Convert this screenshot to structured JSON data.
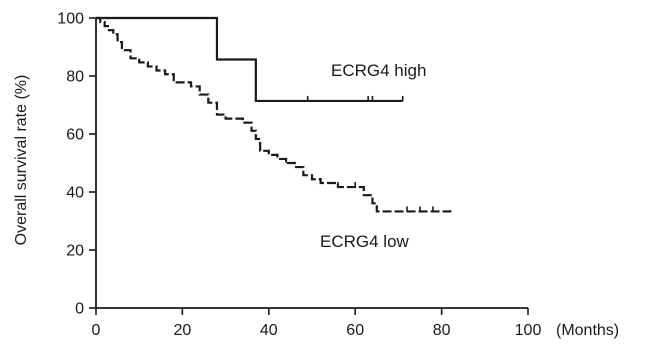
{
  "chart_data": {
    "type": "line",
    "step": true,
    "xlabel": "(Months)",
    "ylabel": "Overall survival rate (%)",
    "xlim": [
      0,
      100
    ],
    "ylim": [
      0,
      100
    ],
    "xticks": [
      0,
      20,
      40,
      60,
      80,
      100
    ],
    "yticks": [
      0,
      20,
      40,
      60,
      80,
      100
    ],
    "grid": false,
    "series": [
      {
        "name": "ECRG4 high",
        "style": "solid",
        "x": [
          0,
          28,
          37,
          71
        ],
        "y": [
          100,
          85.7,
          71.4,
          71.4
        ],
        "censored_x": [
          49,
          63,
          64,
          71
        ],
        "censored_y": [
          71.4,
          71.4,
          71.4,
          71.4
        ]
      },
      {
        "name": "ECRG4 low",
        "style": "dashed",
        "x": [
          0,
          1,
          2,
          3,
          4,
          5,
          6,
          8,
          10,
          12,
          14,
          16,
          18,
          20,
          22,
          24,
          26,
          28,
          30,
          32,
          34,
          36,
          37,
          38,
          40,
          42,
          44,
          46,
          48,
          50,
          52,
          54,
          56,
          60,
          62,
          64,
          65,
          68,
          72,
          76,
          82
        ],
        "y": [
          100,
          98.6,
          97.2,
          95.8,
          94.4,
          91.7,
          88.9,
          86.1,
          84.7,
          83.3,
          81.9,
          80.6,
          77.8,
          77.8,
          76.4,
          73.6,
          70.8,
          66.7,
          65.3,
          65.3,
          63.9,
          61.1,
          58.3,
          54.2,
          52.8,
          51.4,
          50,
          48.6,
          45.8,
          44.4,
          43.1,
          43.1,
          41.7,
          41.7,
          38.9,
          36.1,
          33.3,
          33.3,
          33.3,
          33.3,
          34.7
        ],
        "censored_x": [
          44,
          52,
          56,
          60,
          72,
          75,
          78
        ],
        "censored_y": [
          50,
          43.1,
          41.7,
          41.7,
          33.3,
          33.3,
          33.3
        ]
      }
    ],
    "annotations": [
      "ECRG4 high",
      "ECRG4 low"
    ]
  }
}
